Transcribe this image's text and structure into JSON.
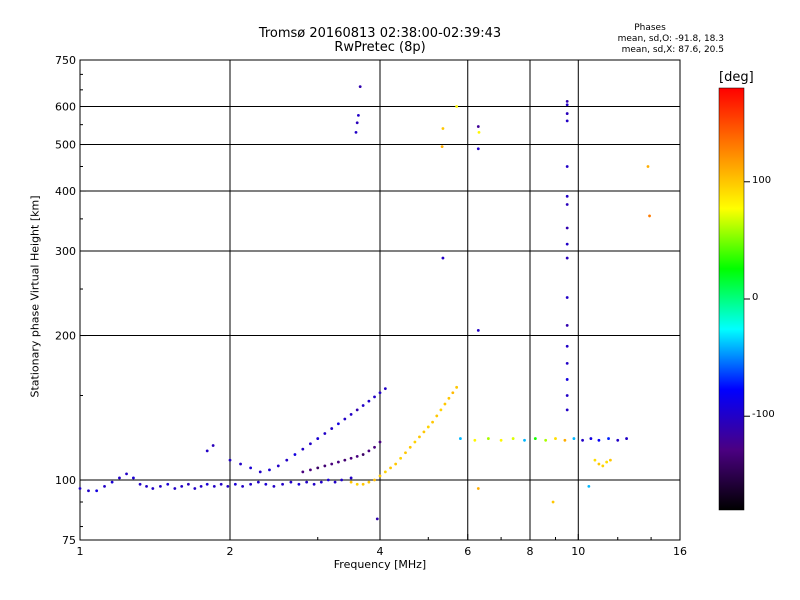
{
  "header": {
    "title_line1": "Tromsø 20160813 02:38:00-02:39:43",
    "title_line2": "RwPretec (8p)"
  },
  "phases_box": {
    "title": "Phases",
    "line1": "mean, sd,O: -91.8, 18.3",
    "line2": "mean, sd,X:  87.6, 20.5"
  },
  "colorbar": {
    "unit": "[deg]",
    "ticks": [
      {
        "value": 100,
        "label": "100"
      },
      {
        "value": 0,
        "label": "0"
      },
      {
        "value": -100,
        "label": "-100"
      }
    ],
    "range": [
      -180,
      180
    ],
    "colors": [
      "#000000",
      "#4b0082",
      "#0000ff",
      "#00ffff",
      "#00ff00",
      "#ffff00",
      "#ff8000",
      "#ff0000"
    ]
  },
  "chart_data": {
    "type": "scatter",
    "xlabel": "Frequency [MHz]",
    "ylabel": "Stationary phase Virtual Height [km]",
    "x_scale": "log",
    "y_scale": "log",
    "xlim": [
      1,
      16
    ],
    "ylim": [
      75,
      750
    ],
    "x_ticks": [
      {
        "value": 1,
        "label": "1"
      },
      {
        "value": 2,
        "label": "2"
      },
      {
        "value": 4,
        "label": "4"
      },
      {
        "value": 6,
        "label": "6"
      },
      {
        "value": 8,
        "label": "8"
      },
      {
        "value": 10,
        "label": "10"
      },
      {
        "value": 16,
        "label": "16"
      }
    ],
    "y_ticks": [
      {
        "value": 75,
        "label": "75"
      },
      {
        "value": 100,
        "label": "100"
      },
      {
        "value": 200,
        "label": "200"
      },
      {
        "value": 300,
        "label": "300"
      },
      {
        "value": 400,
        "label": "400"
      },
      {
        "value": 500,
        "label": "500"
      },
      {
        "value": 600,
        "label": "600"
      },
      {
        "value": 750,
        "label": "750"
      }
    ],
    "gridlines_x": [
      2,
      4,
      6,
      8,
      10
    ],
    "gridlines_y": [
      100,
      200,
      300,
      400,
      500,
      600
    ],
    "series": [
      {
        "trace": "o-mode-E-region",
        "points": [
          [
            1.0,
            96,
            -100
          ],
          [
            1.04,
            95,
            -100
          ],
          [
            1.08,
            95,
            -90
          ],
          [
            1.12,
            97,
            -100
          ],
          [
            1.16,
            99,
            -95
          ],
          [
            1.2,
            101,
            -100
          ],
          [
            1.24,
            103,
            -100
          ],
          [
            1.28,
            101,
            -95
          ],
          [
            1.32,
            98,
            -100
          ],
          [
            1.36,
            97,
            -100
          ],
          [
            1.4,
            96,
            -100
          ],
          [
            1.45,
            97,
            -100
          ],
          [
            1.5,
            98,
            -95
          ],
          [
            1.55,
            96,
            -100
          ],
          [
            1.6,
            97,
            -100
          ],
          [
            1.65,
            98,
            -105
          ],
          [
            1.7,
            96,
            -100
          ],
          [
            1.75,
            97,
            -100
          ],
          [
            1.8,
            98,
            -95
          ],
          [
            1.86,
            97,
            -100
          ],
          [
            1.92,
            98,
            -100
          ],
          [
            1.98,
            97,
            -100
          ],
          [
            2.05,
            98,
            -95
          ],
          [
            2.12,
            97,
            -100
          ],
          [
            2.2,
            98,
            -100
          ],
          [
            2.28,
            99,
            -100
          ],
          [
            2.36,
            98,
            -95
          ],
          [
            2.45,
            97,
            -100
          ],
          [
            2.55,
            98,
            -100
          ],
          [
            2.65,
            99,
            -100
          ],
          [
            2.75,
            98,
            -95
          ],
          [
            2.85,
            99,
            -100
          ],
          [
            2.95,
            98,
            -100
          ],
          [
            3.05,
            99,
            -100
          ],
          [
            3.15,
            100,
            -95
          ],
          [
            3.25,
            99,
            -100
          ],
          [
            3.35,
            100,
            -100
          ],
          [
            3.5,
            101,
            -100
          ]
        ]
      },
      {
        "trace": "o-mode-F-region",
        "points": [
          [
            1.8,
            115,
            -100
          ],
          [
            1.85,
            118,
            -105
          ],
          [
            2.0,
            110,
            -100
          ],
          [
            2.1,
            108,
            -100
          ],
          [
            2.2,
            106,
            -95
          ],
          [
            2.3,
            104,
            -100
          ],
          [
            2.4,
            105,
            -95
          ],
          [
            2.5,
            107,
            -100
          ],
          [
            2.6,
            110,
            -100
          ],
          [
            2.7,
            113,
            -90
          ],
          [
            2.8,
            116,
            -100
          ],
          [
            2.9,
            119,
            -100
          ],
          [
            3.0,
            122,
            -95
          ],
          [
            3.1,
            125,
            -100
          ],
          [
            3.2,
            128,
            -100
          ],
          [
            3.3,
            131,
            -90
          ],
          [
            3.4,
            134,
            -100
          ],
          [
            3.5,
            137,
            -100
          ],
          [
            3.6,
            140,
            -110
          ],
          [
            3.7,
            143,
            -100
          ],
          [
            3.8,
            146,
            -100
          ],
          [
            3.9,
            149,
            -100
          ],
          [
            4.0,
            152,
            -100
          ],
          [
            4.1,
            155,
            -100
          ]
        ]
      },
      {
        "trace": "o-mode-Es-trace",
        "points": [
          [
            2.8,
            104,
            -130
          ],
          [
            2.9,
            105,
            -130
          ],
          [
            3.0,
            106,
            -140
          ],
          [
            3.1,
            107,
            -135
          ],
          [
            3.2,
            108,
            -130
          ],
          [
            3.3,
            109,
            -130
          ],
          [
            3.4,
            110,
            -135
          ],
          [
            3.5,
            111,
            -130
          ],
          [
            3.6,
            112,
            -130
          ],
          [
            3.7,
            113,
            -140
          ],
          [
            3.8,
            115,
            -130
          ],
          [
            3.9,
            117,
            -130
          ],
          [
            4.0,
            120,
            -130
          ]
        ]
      },
      {
        "trace": "x-mode",
        "points": [
          [
            3.5,
            99,
            100
          ],
          [
            3.6,
            98,
            95
          ],
          [
            3.7,
            98,
            100
          ],
          [
            3.8,
            99,
            100
          ],
          [
            3.9,
            100,
            105
          ],
          [
            4.0,
            102,
            100
          ],
          [
            4.1,
            104,
            95
          ],
          [
            4.2,
            106,
            100
          ],
          [
            4.3,
            108,
            100
          ],
          [
            4.4,
            111,
            95
          ],
          [
            4.5,
            114,
            100
          ],
          [
            4.6,
            117,
            100
          ],
          [
            4.7,
            120,
            95
          ],
          [
            4.8,
            123,
            100
          ],
          [
            4.9,
            126,
            100
          ],
          [
            5.0,
            129,
            95
          ],
          [
            5.1,
            132,
            100
          ],
          [
            5.2,
            136,
            100
          ],
          [
            5.3,
            140,
            95
          ],
          [
            5.4,
            144,
            100
          ],
          [
            5.5,
            148,
            100
          ],
          [
            5.6,
            152,
            105
          ],
          [
            5.7,
            156,
            100
          ]
        ]
      },
      {
        "trace": "oblique-echoes",
        "points": [
          [
            5.8,
            122,
            -40
          ],
          [
            6.2,
            121,
            80
          ],
          [
            6.6,
            122,
            60
          ],
          [
            7.0,
            121,
            80
          ],
          [
            7.4,
            122,
            70
          ],
          [
            7.8,
            121,
            -40
          ],
          [
            8.2,
            122,
            30
          ],
          [
            8.6,
            121,
            60
          ],
          [
            9.0,
            122,
            90
          ],
          [
            9.4,
            121,
            110
          ],
          [
            9.8,
            122,
            -40
          ],
          [
            10.2,
            121,
            -100
          ],
          [
            10.6,
            122,
            -90
          ],
          [
            11.0,
            121,
            -80
          ],
          [
            11.5,
            122,
            -70
          ],
          [
            12.0,
            121,
            -100
          ],
          [
            12.5,
            122,
            -100
          ]
        ]
      },
      {
        "trace": "vertical-column-9.5MHz",
        "points": [
          [
            9.5,
            615,
            -110
          ],
          [
            9.5,
            605,
            -100
          ],
          [
            9.5,
            580,
            -105
          ],
          [
            9.5,
            560,
            -100
          ],
          [
            9.5,
            450,
            -100
          ],
          [
            9.5,
            390,
            -100
          ],
          [
            9.5,
            375,
            -105
          ],
          [
            9.5,
            335,
            -110
          ],
          [
            9.5,
            310,
            -100
          ],
          [
            9.5,
            290,
            -105
          ],
          [
            9.5,
            240,
            -100
          ],
          [
            9.5,
            210,
            -110
          ],
          [
            9.5,
            190,
            -100
          ],
          [
            9.5,
            175,
            -100
          ],
          [
            9.5,
            162,
            -90
          ],
          [
            9.5,
            150,
            -100
          ],
          [
            9.5,
            140,
            -100
          ]
        ]
      },
      {
        "trace": "high-echoes",
        "points": [
          [
            3.65,
            660,
            -110
          ],
          [
            3.62,
            575,
            -100
          ],
          [
            3.6,
            555,
            -105
          ],
          [
            3.58,
            530,
            -100
          ],
          [
            5.35,
            540,
            100
          ],
          [
            5.33,
            495,
            110
          ],
          [
            5.7,
            600,
            80
          ],
          [
            6.3,
            545,
            -120
          ],
          [
            6.32,
            530,
            80
          ],
          [
            6.3,
            490,
            -100
          ],
          [
            5.35,
            290,
            -100
          ],
          [
            6.3,
            205,
            -100
          ],
          [
            13.8,
            450,
            110
          ],
          [
            13.9,
            355,
            130
          ]
        ]
      },
      {
        "trace": "sporadic-low",
        "points": [
          [
            10.8,
            110,
            90
          ],
          [
            11.0,
            108,
            100
          ],
          [
            11.2,
            107,
            95
          ],
          [
            11.4,
            109,
            90
          ],
          [
            11.6,
            110,
            100
          ],
          [
            3.95,
            83,
            -110
          ],
          [
            6.3,
            96,
            110
          ],
          [
            8.9,
            90,
            100
          ],
          [
            10.5,
            97,
            -40
          ]
        ]
      }
    ]
  }
}
